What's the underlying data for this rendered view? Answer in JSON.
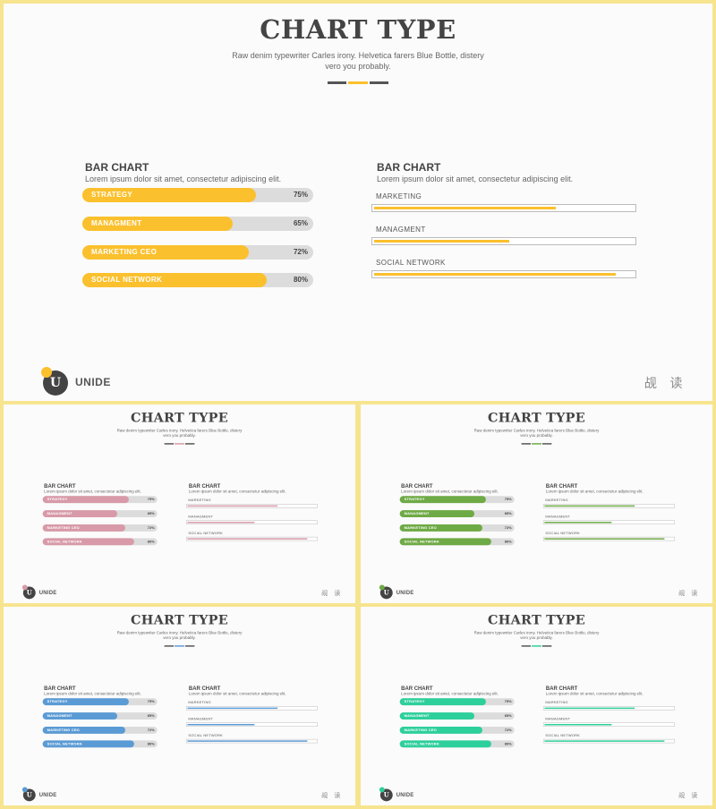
{
  "slide": {
    "title": "CHART TYPE",
    "subtitle": "Raw denim typewriter Carles irony. Helvetica farers Blue Bottle, distery vero you probably.",
    "brand": "UNIDE",
    "logo_letter": "U",
    "corner_text": "觇 读",
    "left_title": "BAR CHART",
    "left_sub": "Lorem ipsum dolor sit amet, consectetur adipiscing elit.",
    "right_title": "BAR CHART",
    "right_sub": "Lorem ipsum dolor sit amet, consectetur adipiscing elit."
  },
  "variants": [
    {
      "accent": "#fbc02d"
    },
    {
      "accent": "#d89aa8"
    },
    {
      "accent": "#6eaa45"
    },
    {
      "accent": "#5b9bd5"
    },
    {
      "accent": "#2dcf9b"
    }
  ],
  "chart_data": [
    {
      "type": "bar",
      "orientation": "horizontal",
      "title": "BAR CHART",
      "categories": [
        "STRATEGY",
        "MANAGMENT",
        "MARKETING CEO",
        "SOCIAL NETWORK"
      ],
      "values": [
        75,
        65,
        72,
        80
      ],
      "value_labels": [
        "75%",
        "65%",
        "72%",
        "80%"
      ],
      "ylim": [
        0,
        100
      ]
    },
    {
      "type": "bar",
      "orientation": "horizontal",
      "title": "BAR CHART",
      "categories": [
        "MARKETING",
        "MANAGMENT",
        "SOCIAL NETWORK"
      ],
      "values": [
        70,
        52,
        93
      ],
      "ylim": [
        0,
        100
      ]
    }
  ]
}
